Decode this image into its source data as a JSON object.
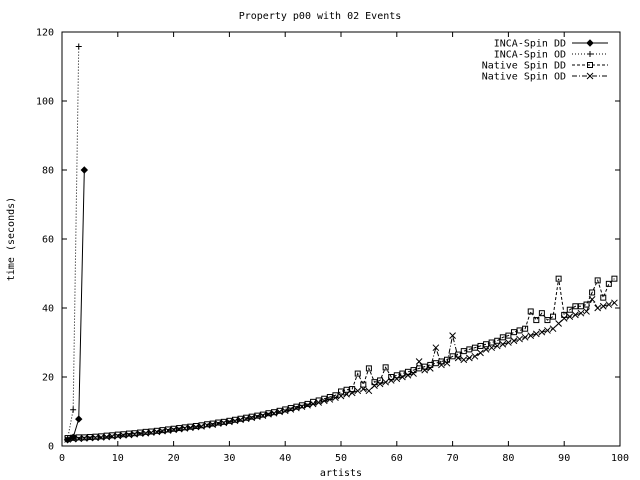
{
  "chart_data": {
    "type": "line",
    "title": "Property p00 with 02 Events",
    "xlabel": "artists",
    "ylabel": "time (seconds)",
    "xlim": [
      0,
      100
    ],
    "ylim": [
      0,
      120
    ],
    "x_ticks": [
      "0",
      "10",
      "20",
      "30",
      "40",
      "50",
      "60",
      "70",
      "80",
      "90",
      "100"
    ],
    "y_ticks": [
      "0",
      "20",
      "40",
      "60",
      "80",
      "100",
      "120"
    ],
    "grid": false,
    "legend_position": "top-right",
    "series": [
      {
        "name": "INCA-Spin DD",
        "marker": "diamond",
        "dash": "solid",
        "points": [
          [
            1,
            1.8
          ],
          [
            2,
            2.5
          ],
          [
            3,
            7.8
          ],
          [
            4,
            80.0
          ]
        ]
      },
      {
        "name": "INCA-Spin OD",
        "marker": "plus",
        "dash": "dotted",
        "points": [
          [
            1,
            2.0
          ],
          [
            2,
            10.5
          ],
          [
            3,
            115.8
          ]
        ]
      },
      {
        "name": "Native Spin DD",
        "marker": "square",
        "dash": "dashed",
        "points": [
          [
            1,
            2.3
          ],
          [
            2,
            2.4
          ],
          [
            3,
            2.5
          ],
          [
            4,
            2.5
          ],
          [
            5,
            2.6
          ],
          [
            6,
            2.7
          ],
          [
            7,
            2.8
          ],
          [
            8,
            3.0
          ],
          [
            9,
            3.1
          ],
          [
            10,
            3.3
          ],
          [
            11,
            3.4
          ],
          [
            12,
            3.6
          ],
          [
            13,
            3.7
          ],
          [
            14,
            3.9
          ],
          [
            15,
            4.1
          ],
          [
            16,
            4.2
          ],
          [
            17,
            4.4
          ],
          [
            18,
            4.6
          ],
          [
            19,
            4.8
          ],
          [
            20,
            5.0
          ],
          [
            21,
            5.2
          ],
          [
            22,
            5.4
          ],
          [
            23,
            5.6
          ],
          [
            24,
            5.8
          ],
          [
            25,
            6.0
          ],
          [
            26,
            6.3
          ],
          [
            27,
            6.5
          ],
          [
            28,
            6.8
          ],
          [
            29,
            7.0
          ],
          [
            30,
            7.3
          ],
          [
            31,
            7.6
          ],
          [
            32,
            7.9
          ],
          [
            33,
            8.2
          ],
          [
            34,
            8.5
          ],
          [
            35,
            8.8
          ],
          [
            36,
            9.1
          ],
          [
            37,
            9.5
          ],
          [
            38,
            9.8
          ],
          [
            39,
            10.2
          ],
          [
            40,
            10.6
          ],
          [
            41,
            11.0
          ],
          [
            42,
            11.4
          ],
          [
            43,
            11.8
          ],
          [
            44,
            12.2
          ],
          [
            45,
            12.8
          ],
          [
            46,
            13.2
          ],
          [
            47,
            13.7
          ],
          [
            48,
            14.2
          ],
          [
            49,
            14.7
          ],
          [
            50,
            15.8
          ],
          [
            51,
            16.3
          ],
          [
            52,
            16.5
          ],
          [
            53,
            21.0
          ],
          [
            54,
            17.8
          ],
          [
            55,
            22.5
          ],
          [
            56,
            18.5
          ],
          [
            57,
            19.0
          ],
          [
            58,
            22.8
          ],
          [
            59,
            20.0
          ],
          [
            60,
            20.5
          ],
          [
            61,
            21.0
          ],
          [
            62,
            21.5
          ],
          [
            63,
            22.0
          ],
          [
            64,
            22.5
          ],
          [
            65,
            23.0
          ],
          [
            66,
            23.5
          ],
          [
            67,
            24.0
          ],
          [
            68,
            24.5
          ],
          [
            69,
            25.0
          ],
          [
            70,
            26.0
          ],
          [
            71,
            26.5
          ],
          [
            72,
            27.5
          ],
          [
            73,
            28.0
          ],
          [
            74,
            28.5
          ],
          [
            75,
            29.0
          ],
          [
            76,
            29.5
          ],
          [
            77,
            30.0
          ],
          [
            78,
            30.5
          ],
          [
            79,
            31.5
          ],
          [
            80,
            32.0
          ],
          [
            81,
            33.0
          ],
          [
            82,
            33.5
          ],
          [
            83,
            34.0
          ],
          [
            84,
            39.0
          ],
          [
            85,
            36.5
          ],
          [
            86,
            38.5
          ],
          [
            87,
            36.5
          ],
          [
            88,
            37.5
          ],
          [
            89,
            48.5
          ],
          [
            90,
            38.0
          ],
          [
            91,
            39.5
          ],
          [
            92,
            40.5
          ],
          [
            93,
            40.5
          ],
          [
            94,
            41.0
          ],
          [
            95,
            44.5
          ],
          [
            96,
            48.0
          ],
          [
            97,
            43.0
          ],
          [
            98,
            47.0
          ],
          [
            99,
            48.5
          ]
        ]
      },
      {
        "name": "Native Spin OD",
        "marker": "cross",
        "dash": "dash-dot",
        "points": [
          [
            1,
            1.9
          ],
          [
            2,
            2.0
          ],
          [
            3,
            2.1
          ],
          [
            4,
            2.2
          ],
          [
            5,
            2.3
          ],
          [
            6,
            2.4
          ],
          [
            7,
            2.5
          ],
          [
            8,
            2.6
          ],
          [
            9,
            2.8
          ],
          [
            10,
            2.9
          ],
          [
            11,
            3.1
          ],
          [
            12,
            3.2
          ],
          [
            13,
            3.4
          ],
          [
            14,
            3.6
          ],
          [
            15,
            3.7
          ],
          [
            16,
            3.9
          ],
          [
            17,
            4.1
          ],
          [
            18,
            4.3
          ],
          [
            19,
            4.5
          ],
          [
            20,
            4.7
          ],
          [
            21,
            4.9
          ],
          [
            22,
            5.1
          ],
          [
            23,
            5.3
          ],
          [
            24,
            5.5
          ],
          [
            25,
            5.7
          ],
          [
            26,
            6.0
          ],
          [
            27,
            6.2
          ],
          [
            28,
            6.5
          ],
          [
            29,
            6.7
          ],
          [
            30,
            7.0
          ],
          [
            31,
            7.3
          ],
          [
            32,
            7.6
          ],
          [
            33,
            7.9
          ],
          [
            34,
            8.2
          ],
          [
            35,
            8.5
          ],
          [
            36,
            8.8
          ],
          [
            37,
            9.2
          ],
          [
            38,
            9.5
          ],
          [
            39,
            9.9
          ],
          [
            40,
            10.2
          ],
          [
            41,
            10.6
          ],
          [
            42,
            11.0
          ],
          [
            43,
            11.4
          ],
          [
            44,
            11.8
          ],
          [
            45,
            12.2
          ],
          [
            46,
            12.6
          ],
          [
            47,
            13.1
          ],
          [
            48,
            13.5
          ],
          [
            49,
            14.0
          ],
          [
            50,
            14.5
          ],
          [
            51,
            15.0
          ],
          [
            52,
            15.4
          ],
          [
            53,
            16.0
          ],
          [
            54,
            16.5
          ],
          [
            55,
            16.0
          ],
          [
            56,
            17.5
          ],
          [
            57,
            18.0
          ],
          [
            58,
            18.5
          ],
          [
            59,
            19.0
          ],
          [
            60,
            19.5
          ],
          [
            61,
            20.0
          ],
          [
            62,
            20.5
          ],
          [
            63,
            21.0
          ],
          [
            64,
            24.5
          ],
          [
            65,
            22.0
          ],
          [
            66,
            22.5
          ],
          [
            67,
            28.5
          ],
          [
            68,
            23.5
          ],
          [
            69,
            24.0
          ],
          [
            70,
            32.0
          ],
          [
            71,
            25.5
          ],
          [
            72,
            25.0
          ],
          [
            73,
            25.5
          ],
          [
            74,
            26.0
          ],
          [
            75,
            27.0
          ],
          [
            76,
            28.0
          ],
          [
            77,
            28.5
          ],
          [
            78,
            29.0
          ],
          [
            79,
            29.5
          ],
          [
            80,
            30.0
          ],
          [
            81,
            30.5
          ],
          [
            82,
            31.0
          ],
          [
            83,
            31.5
          ],
          [
            84,
            32.0
          ],
          [
            85,
            32.5
          ],
          [
            86,
            33.0
          ],
          [
            87,
            33.5
          ],
          [
            88,
            34.0
          ],
          [
            89,
            35.5
          ],
          [
            90,
            37.0
          ],
          [
            91,
            37.5
          ],
          [
            92,
            38.0
          ],
          [
            93,
            38.5
          ],
          [
            94,
            39.0
          ],
          [
            95,
            42.5
          ],
          [
            96,
            40.0
          ],
          [
            97,
            40.5
          ],
          [
            98,
            41.0
          ],
          [
            99,
            41.5
          ]
        ]
      }
    ]
  }
}
